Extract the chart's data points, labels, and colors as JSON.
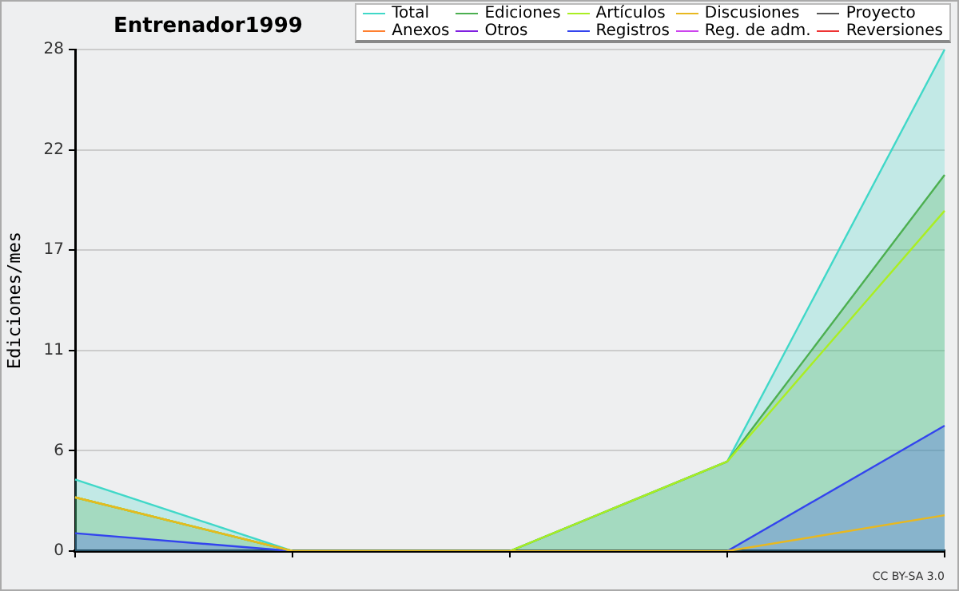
{
  "chart_data": {
    "type": "line",
    "title": "Entrenador1999",
    "ylabel": "Ediciones/mes",
    "annotations": [
      "CC BY-SA 3.0"
    ],
    "categories": [
      null,
      null,
      null,
      null,
      null
    ],
    "ylim": [
      0,
      28
    ],
    "yticks": [
      0,
      {
        "value": 5.6,
        "label": "6"
      },
      {
        "value": 11.2,
        "label": "11"
      },
      {
        "value": 16.8,
        "label": "17"
      },
      {
        "value": 22.4,
        "label": "22"
      },
      28
    ],
    "grid": "y",
    "legend": "top right",
    "marker": "none",
    "series": [
      {
        "name": "Total",
        "color": "#40d8c8",
        "type": "area",
        "values": [
          4.0,
          0,
          0,
          5.0,
          28
        ]
      },
      {
        "name": "Ediciones",
        "color": "#4caf50",
        "type": "area",
        "values": [
          3.0,
          0,
          0,
          5.0,
          21.0
        ]
      },
      {
        "name": "Artículos",
        "color": "#aaee22",
        "type": "line",
        "values": [
          3.0,
          0,
          0,
          5.0,
          19.0
        ]
      },
      {
        "name": "Discusiones",
        "color": "#e8b820",
        "type": "line",
        "values": [
          3.0,
          0,
          0,
          0,
          2.0
        ]
      },
      {
        "name": "Proyecto",
        "color": "#555555",
        "type": "line",
        "values": [
          null,
          null,
          null,
          null,
          null
        ]
      },
      {
        "name": "Anexos",
        "color": "#ff8030",
        "type": "line",
        "values": [
          null,
          null,
          null,
          null,
          null
        ]
      },
      {
        "name": "Otros",
        "color": "#8020e0",
        "type": "line",
        "values": [
          null,
          null,
          null,
          null,
          null
        ]
      },
      {
        "name": "Registros",
        "color": "#3344ee",
        "type": "area",
        "values": [
          1.0,
          0,
          0,
          0,
          7.0
        ]
      },
      {
        "name": "Reg. de adm.",
        "color": "#cc44ee",
        "type": "line",
        "values": [
          null,
          null,
          null,
          null,
          null
        ]
      },
      {
        "name": "Reversiones",
        "color": "#ee3333",
        "type": "line",
        "values": [
          null,
          null,
          null,
          null,
          null
        ]
      }
    ]
  }
}
